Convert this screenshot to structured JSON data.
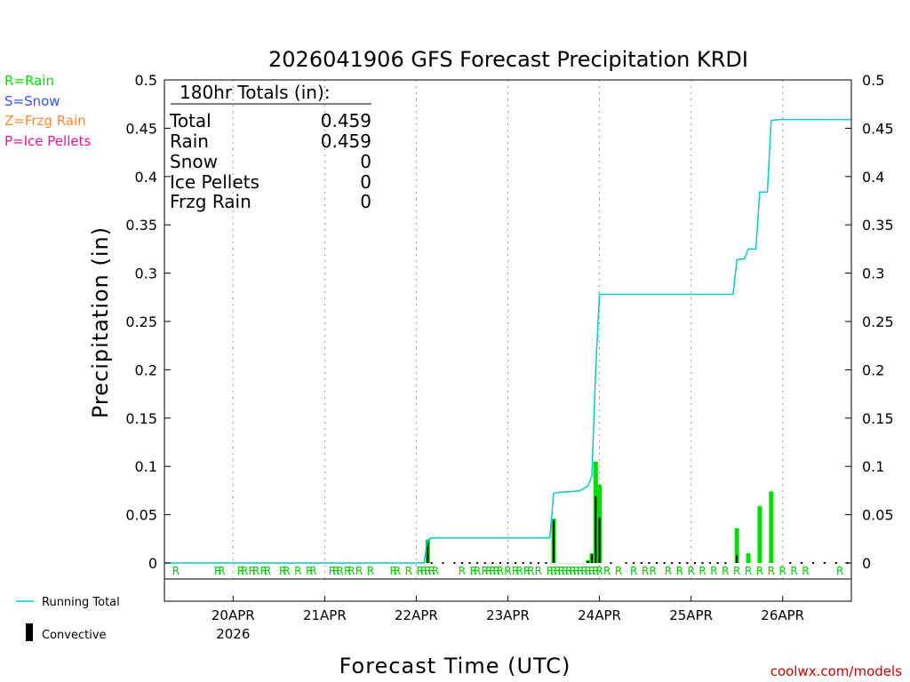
{
  "colors": {
    "rain": "#00dd00",
    "snow": "#3355ff",
    "frzg": "#ff8833",
    "ice": "#ee1199",
    "running_total": "#00cccc",
    "convective": "#000000",
    "credit": "#cc0000"
  },
  "key": [
    {
      "text": "R=Rain",
      "color": "#00dd00"
    },
    {
      "text": "S=Snow",
      "color": "#3355ff"
    },
    {
      "text": "Z=Frzg Rain",
      "color": "#ff8833"
    },
    {
      "text": "P=Ice Pellets",
      "color": "#ee1199"
    }
  ],
  "totals_box": {
    "header": "180hr Totals (in):",
    "rows": [
      {
        "label": "Total",
        "value": "0.459"
      },
      {
        "label": "Rain",
        "value": "0.459"
      },
      {
        "label": "Snow",
        "value": "0"
      },
      {
        "label": "Ice Pellets",
        "value": "0"
      },
      {
        "label": "Frzg Rain",
        "value": "0"
      }
    ]
  },
  "legend": {
    "running_total": "Running Total",
    "convective": "Convective"
  },
  "credit": "coolwx.com/models",
  "chart_data": {
    "type": "bar",
    "title": "2026041906 GFS Forecast Precipitation KRDI",
    "xlabel": "Forecast Time (UTC)",
    "ylabel": "Precipitation (in)",
    "ylim": [
      0,
      0.5
    ],
    "yticks": [
      0,
      0.05,
      0.1,
      0.15,
      0.2,
      0.25,
      0.3,
      0.35,
      0.4,
      0.45,
      0.5
    ],
    "ytick_labels": [
      "0",
      "0.05",
      "0.1",
      "0.15",
      "0.2",
      "0.25",
      "0.3",
      "0.35",
      "0.4",
      "0.45",
      "0.5"
    ],
    "xlim_hours": [
      0,
      180
    ],
    "x_units": "forecast hours from 2026-04-19 06Z",
    "xticks": [
      {
        "hour": 18,
        "label": "20APR",
        "sublabel": "2026"
      },
      {
        "hour": 42,
        "label": "21APR",
        "sublabel": ""
      },
      {
        "hour": 66,
        "label": "22APR",
        "sublabel": ""
      },
      {
        "hour": 90,
        "label": "23APR",
        "sublabel": ""
      },
      {
        "hour": 114,
        "label": "24APR",
        "sublabel": ""
      },
      {
        "hour": 138,
        "label": "25APR",
        "sublabel": ""
      },
      {
        "hour": 162,
        "label": "26APR",
        "sublabel": ""
      }
    ],
    "grid": "vertical dotted at day boundaries",
    "precip_bars": [
      {
        "hour": 69,
        "value": 0.024
      },
      {
        "hour": 102,
        "value": 0.046
      },
      {
        "hour": 111,
        "value": 0.003
      },
      {
        "hour": 112,
        "value": 0.01
      },
      {
        "hour": 113,
        "value": 0.105
      },
      {
        "hour": 114,
        "value": 0.081
      },
      {
        "hour": 150,
        "value": 0.036
      },
      {
        "hour": 153,
        "value": 0.01
      },
      {
        "hour": 156,
        "value": 0.059
      },
      {
        "hour": 159,
        "value": 0.074
      }
    ],
    "convective_bars": [
      {
        "hour": 69,
        "value": 0.022
      },
      {
        "hour": 102,
        "value": 0.044
      },
      {
        "hour": 111,
        "value": 0.002
      },
      {
        "hour": 112,
        "value": 0.009
      },
      {
        "hour": 113,
        "value": 0.069
      },
      {
        "hour": 114,
        "value": 0.047
      },
      {
        "hour": 150,
        "value": 0.008
      }
    ],
    "running_total": [
      {
        "hour": 0,
        "value": 0
      },
      {
        "hour": 68,
        "value": 0
      },
      {
        "hour": 69,
        "value": 0.024
      },
      {
        "hour": 70,
        "value": 0.026
      },
      {
        "hour": 101,
        "value": 0.026
      },
      {
        "hour": 102,
        "value": 0.072
      },
      {
        "hour": 103,
        "value": 0.073
      },
      {
        "hour": 107,
        "value": 0.074
      },
      {
        "hour": 109,
        "value": 0.075
      },
      {
        "hour": 111,
        "value": 0.08
      },
      {
        "hour": 112,
        "value": 0.09
      },
      {
        "hour": 113,
        "value": 0.2
      },
      {
        "hour": 114,
        "value": 0.278
      },
      {
        "hour": 149,
        "value": 0.278
      },
      {
        "hour": 150,
        "value": 0.314
      },
      {
        "hour": 152,
        "value": 0.315
      },
      {
        "hour": 153,
        "value": 0.325
      },
      {
        "hour": 155,
        "value": 0.325
      },
      {
        "hour": 156,
        "value": 0.384
      },
      {
        "hour": 158,
        "value": 0.384
      },
      {
        "hour": 159,
        "value": 0.458
      },
      {
        "hour": 161,
        "value": 0.459
      },
      {
        "hour": 180,
        "value": 0.459
      }
    ],
    "zero_markers": [
      70,
      73,
      76,
      78,
      80,
      82,
      84,
      86,
      88,
      90,
      92,
      94,
      96,
      98,
      100,
      117,
      121,
      123,
      125,
      127,
      129,
      131,
      133,
      135,
      137,
      139,
      141,
      143,
      145,
      147,
      164,
      167,
      170,
      173,
      176,
      179
    ],
    "ptype_markers": {
      "label": "R",
      "hours": [
        3,
        14,
        15,
        20,
        21,
        23,
        24,
        26,
        27,
        31,
        32,
        35,
        38,
        39,
        44,
        45,
        46,
        48,
        49,
        51,
        54,
        60,
        61,
        64,
        67,
        68,
        69,
        70,
        71,
        78,
        81,
        82,
        84,
        85,
        86,
        87,
        88,
        90,
        92,
        93,
        95,
        96,
        98,
        101,
        102,
        103,
        104,
        105,
        106,
        107,
        108,
        109,
        110,
        111,
        112,
        113,
        114,
        116,
        119,
        123,
        126,
        128,
        132,
        135,
        138,
        141,
        144,
        147,
        150,
        153,
        156,
        159,
        162,
        165,
        168,
        177
      ]
    }
  }
}
